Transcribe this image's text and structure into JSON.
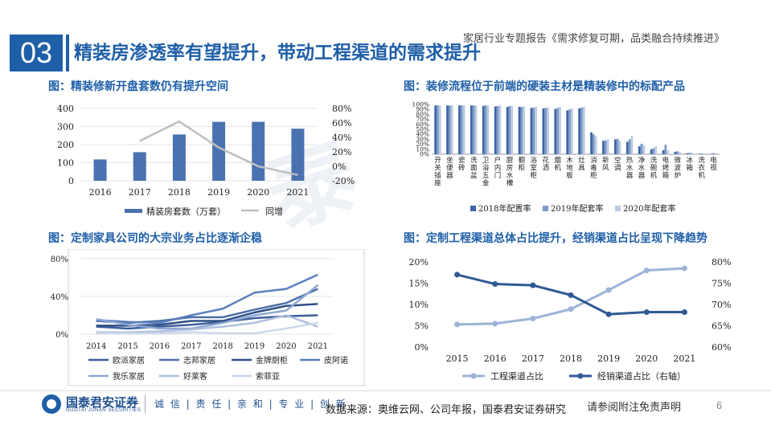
{
  "header": {
    "section_number": "03",
    "title": "精装房渗透率有望提升，带动工程渠道的需求提升",
    "report_name": "家居行业专题报告《需求修复可期，品类融合持续推进》"
  },
  "panels": {
    "p1_title": "图：精装修新开盘套数仍有提升空间",
    "p2_title": "图：装修流程位于前端的硬装主材是精装修中的标配产品",
    "p3_title": "图：定制家具公司的大宗业务占比逐渐企稳",
    "p4_title": "图：定制工程渠道总体占比提升，经销渠道占比呈现下降趋势"
  },
  "chart_data": [
    {
      "type": "bar",
      "categories": [
        "2016",
        "2017",
        "2018",
        "2019",
        "2020",
        "2021"
      ],
      "series": [
        {
          "name": "精装房套数（万套）",
          "axis": "left",
          "kind": "bar",
          "values": [
            118,
            158,
            256,
            326,
            326,
            288
          ]
        },
        {
          "name": "同增",
          "axis": "right",
          "kind": "line",
          "values": [
            null,
            35,
            62,
            26,
            0,
            -12
          ]
        }
      ],
      "left_ticks": [
        "0",
        "100",
        "200",
        "300",
        "400"
      ],
      "right_ticks": [
        "-20%",
        "0%",
        "20%",
        "40%",
        "60%",
        "80%"
      ],
      "ylim_left": [
        0,
        400
      ],
      "ylim_right": [
        -20,
        80
      ],
      "colors": {
        "bar": "#4a72b0",
        "line": "#bfbfbf"
      }
    },
    {
      "type": "bar",
      "categories": [
        "开关插座",
        "坐便器",
        "瓷砖",
        "洗面盆",
        "卫浴五金",
        "户内门",
        "厨房水槽",
        "橱柜",
        "浴室柜",
        "花洒",
        "烟机",
        "木地板",
        "灶具",
        "消毒柜",
        "新风",
        "空调",
        "热水器",
        "净水器",
        "洗碗机",
        "电烤箱",
        "微波炉",
        "冰箱",
        "洗衣机",
        "电视"
      ],
      "series": [
        {
          "name": "2018年配置率",
          "values": [
            98,
            98,
            98,
            98,
            97,
            96,
            95,
            95,
            93,
            92,
            91,
            88,
            92,
            44,
            27,
            30,
            25,
            16,
            10,
            8,
            5,
            2,
            1,
            1
          ]
        },
        {
          "name": "2019年配套率",
          "values": [
            98,
            98,
            98,
            98,
            98,
            97,
            97,
            95,
            94,
            93,
            93,
            90,
            94,
            40,
            28,
            31,
            30,
            21,
            12,
            19,
            6,
            3,
            2,
            2
          ]
        },
        {
          "name": "2020年配套率",
          "values": [
            98,
            98,
            98,
            98,
            98,
            98,
            97,
            96,
            95,
            94,
            95,
            92,
            95,
            36,
            30,
            27,
            37,
            18,
            16,
            8,
            4,
            3,
            2,
            2
          ]
        }
      ],
      "y_ticks": [
        "0%",
        "10%",
        "20%",
        "30%",
        "40%",
        "50%",
        "60%",
        "70%",
        "80%",
        "90%",
        "100%"
      ],
      "ylim": [
        0,
        100
      ],
      "colors": [
        "#3d66a8",
        "#7d9ac8",
        "#bccbe3"
      ]
    },
    {
      "type": "line",
      "categories": [
        "2014",
        "2015",
        "2016",
        "2017",
        "2018",
        "2019",
        "2020",
        "2021"
      ],
      "series": [
        {
          "name": "欧派家居",
          "values": [
            8,
            6,
            8,
            10,
            13,
            17,
            19,
            20
          ],
          "color": "#3d5f9c"
        },
        {
          "name": "志邦家居",
          "values": [
            14,
            12,
            14,
            18,
            18,
            26,
            33,
            48
          ],
          "color": "#4d6fa7"
        },
        {
          "name": "金牌厨柜",
          "values": [
            9,
            9,
            10,
            14,
            14,
            23,
            30,
            32
          ],
          "color": "#2f4f86"
        },
        {
          "name": "皮阿诺",
          "values": [
            15,
            13,
            12,
            20,
            27,
            44,
            48,
            63
          ],
          "color": "#5a7fbf"
        },
        {
          "name": "我乐家居",
          "values": [
            16,
            10,
            6,
            6,
            12,
            20,
            25,
            52
          ],
          "color": "#8da7d3"
        },
        {
          "name": "好莱客",
          "values": [
            2,
            2,
            3,
            5,
            8,
            12,
            20,
            8
          ],
          "color": "#aebfdd"
        },
        {
          "name": "索菲亚",
          "values": [
            1,
            1,
            1,
            2,
            1,
            1,
            6,
            12
          ],
          "color": "#ccd7ea"
        }
      ],
      "y_ticks": [
        "0%",
        "40%",
        "80%"
      ],
      "ylim": [
        0,
        80
      ]
    },
    {
      "type": "line",
      "categories": [
        "2015",
        "2016",
        "2017",
        "2018",
        "2019",
        "2020",
        "2021"
      ],
      "series": [
        {
          "name": "工程渠道占比",
          "axis": "left",
          "values": [
            5.3,
            5.5,
            6.7,
            8.9,
            13.4,
            18.0,
            18.5
          ],
          "color": "#9db3d8"
        },
        {
          "name": "经销渠道占比（右轴）",
          "axis": "right",
          "values": [
            77.0,
            74.8,
            74.5,
            72.2,
            67.7,
            68.2,
            68.2
          ],
          "color": "#2f5a94"
        }
      ],
      "left_ticks": [
        "0%",
        "5%",
        "10%",
        "15%",
        "20%"
      ],
      "right_ticks": [
        "60%",
        "65%",
        "70%",
        "75%",
        "80%"
      ],
      "ylim_left": [
        0,
        20
      ],
      "ylim_right": [
        60,
        80
      ]
    }
  ],
  "footer": {
    "logo_cn": "国泰君安证券",
    "logo_en": "GUOTAI JUNAN SECURITIES",
    "slogan": "诚 信 | 责 任 | 亲 和 | 专 业 | 创 新",
    "source": "数据来源：奥维云网、公司年报，国泰君安证券研究",
    "disclaimer": "请参阅附注免责声明",
    "page": "6"
  }
}
